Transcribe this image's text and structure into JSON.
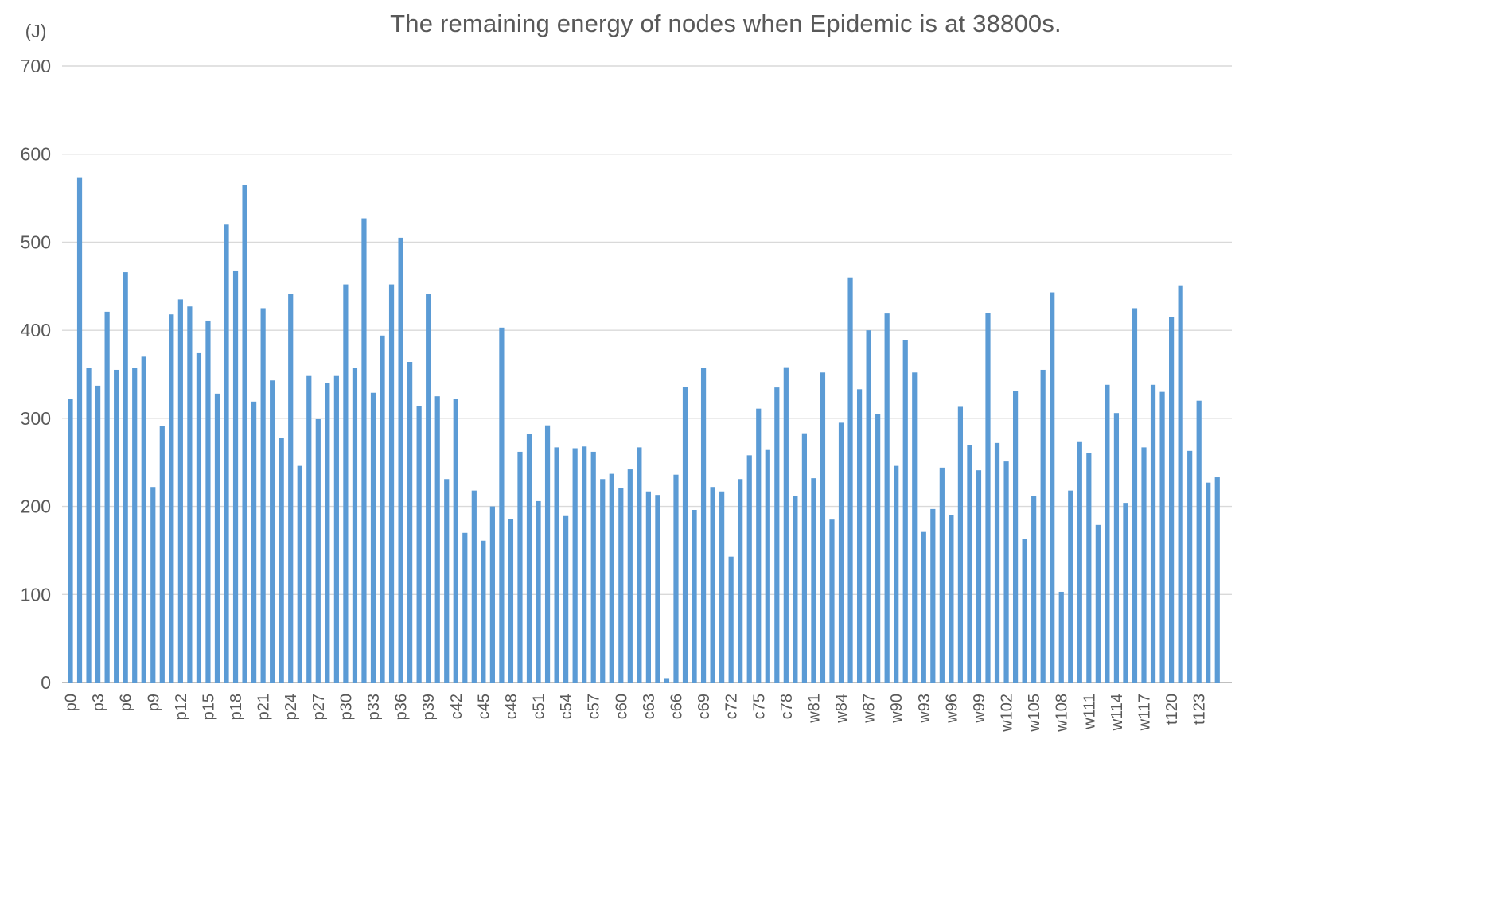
{
  "header": {
    "title": "The remaining energy of nodes when Epidemic is at 38800s.",
    "y_unit_label": "(J)"
  },
  "colors": {
    "bar": "#5B9BD5",
    "gridline": "#D9D9D9",
    "axis_line": "#BFBFBF",
    "text": "#595959",
    "background": "#FFFFFF"
  },
  "chart_data": {
    "type": "bar",
    "title": "The remaining energy of nodes when Epidemic is at 38800s.",
    "xlabel": "",
    "ylabel": "(J)",
    "ylim": [
      0,
      700
    ],
    "yticks": [
      0,
      100,
      200,
      300,
      400,
      500,
      600,
      700
    ],
    "grid": "horizontal",
    "legend_position": "none",
    "x_tick_label_rotation_deg": -90,
    "x_tick_shown_every": 3,
    "categories": [
      "p0",
      "p1",
      "p2",
      "p3",
      "p4",
      "p5",
      "p6",
      "p7",
      "p8",
      "p9",
      "p10",
      "p11",
      "p12",
      "p13",
      "p14",
      "p15",
      "p16",
      "p17",
      "p18",
      "p19",
      "p20",
      "p21",
      "p22",
      "p23",
      "p24",
      "p25",
      "p26",
      "p27",
      "p28",
      "p29",
      "p30",
      "p31",
      "p32",
      "p33",
      "p34",
      "p35",
      "p36",
      "p37",
      "p38",
      "p39",
      "p40",
      "p41",
      "c42",
      "c43",
      "c44",
      "c45",
      "c46",
      "c47",
      "c48",
      "c49",
      "c50",
      "c51",
      "c52",
      "c53",
      "c54",
      "c55",
      "c56",
      "c57",
      "c58",
      "c59",
      "c60",
      "c61",
      "c62",
      "c63",
      "c64",
      "c65",
      "c66",
      "c67",
      "c68",
      "c69",
      "c70",
      "c71",
      "c72",
      "c73",
      "c74",
      "c75",
      "c76",
      "c77",
      "c78",
      "c79",
      "c80",
      "w81",
      "w82",
      "w83",
      "w84",
      "w85",
      "w86",
      "w87",
      "w88",
      "w89",
      "w90",
      "w91",
      "w92",
      "w93",
      "w94",
      "w95",
      "w96",
      "w97",
      "w98",
      "w99",
      "w100",
      "w101",
      "w102",
      "w103",
      "w104",
      "w105",
      "w106",
      "w107",
      "w108",
      "w109",
      "w110",
      "w111",
      "w112",
      "w113",
      "w114",
      "w115",
      "w116",
      "w117",
      "w118",
      "w119",
      "t120",
      "t121",
      "t122",
      "t123",
      "t124",
      "t125"
    ],
    "values": [
      322,
      573,
      357,
      337,
      421,
      355,
      466,
      357,
      370,
      222,
      291,
      418,
      435,
      427,
      374,
      411,
      328,
      520,
      467,
      565,
      319,
      425,
      343,
      278,
      441,
      246,
      348,
      299,
      340,
      348,
      452,
      357,
      527,
      329,
      394,
      452,
      505,
      364,
      314,
      441,
      325,
      231,
      322,
      170,
      218,
      161,
      200,
      403,
      186,
      262,
      282,
      206,
      292,
      267,
      189,
      266,
      268,
      262,
      231,
      237,
      221,
      242,
      267,
      217,
      213,
      5,
      236,
      336,
      196,
      357,
      222,
      217,
      143,
      231,
      258,
      311,
      264,
      335,
      358,
      212,
      283,
      232,
      352,
      185,
      295,
      460,
      333,
      400,
      305,
      419,
      246,
      389,
      352,
      171,
      197,
      244,
      190,
      313,
      270,
      241,
      420,
      272,
      251,
      331,
      163,
      212,
      355,
      443,
      103,
      218,
      273,
      261,
      179,
      338,
      306,
      204,
      425,
      267,
      338,
      330,
      415,
      451,
      263,
      320,
      227,
      233
    ]
  }
}
